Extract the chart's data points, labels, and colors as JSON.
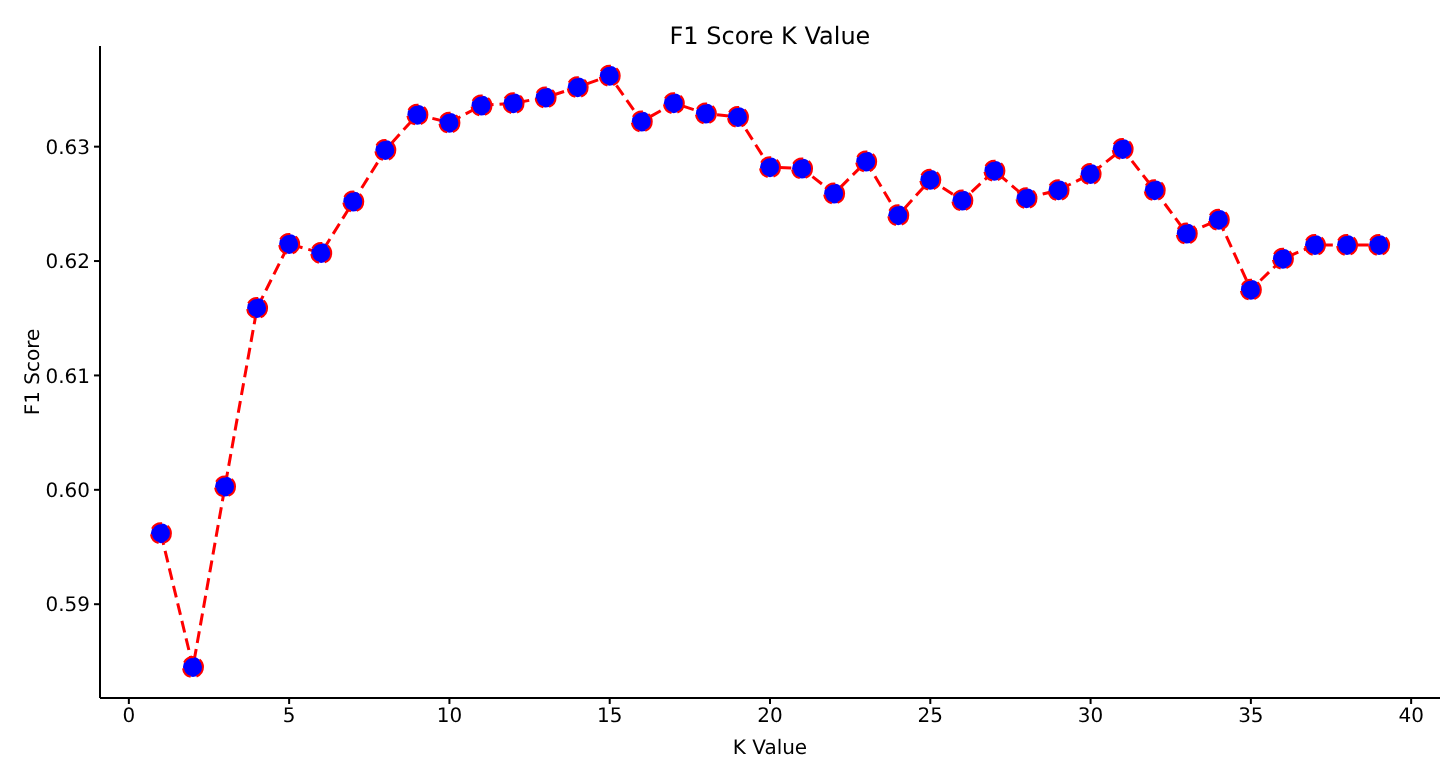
{
  "chart_data": {
    "type": "line",
    "title": "F1 Score K Value",
    "xlabel": "K Value",
    "ylabel": "F1 Score",
    "x": [
      1,
      2,
      3,
      4,
      5,
      6,
      7,
      8,
      9,
      10,
      11,
      12,
      13,
      14,
      15,
      16,
      17,
      18,
      19,
      20,
      21,
      22,
      23,
      24,
      25,
      26,
      27,
      28,
      29,
      30,
      31,
      32,
      33,
      34,
      35,
      36,
      37,
      38,
      39
    ],
    "series": [
      {
        "color": "#ff0000",
        "values": [
          0.5962,
          0.5845,
          0.6003,
          0.6159,
          0.6215,
          0.6207,
          0.6252,
          0.6297,
          0.6328,
          0.6321,
          0.6336,
          0.6338,
          0.6343,
          0.6352,
          0.6362,
          0.6322,
          0.6338,
          0.6329,
          0.6326,
          0.6282,
          0.6281,
          0.6259,
          0.6287,
          0.624,
          0.6271,
          0.6253,
          0.6279,
          0.6255,
          0.6262,
          0.6276,
          0.6298,
          0.6262,
          0.6224,
          0.6236,
          0.6175,
          0.6202,
          0.6214,
          0.6214,
          0.6214
        ]
      }
    ],
    "xlim": [
      -0.9,
      40.9
    ],
    "xticks": [
      0,
      5,
      10,
      15,
      20,
      25,
      30,
      35,
      40
    ],
    "ylim": [
      0.5818,
      0.6388
    ],
    "yticks": [
      {
        "value": 0.59,
        "label": "0.59"
      },
      {
        "value": 0.6,
        "label": "0.60"
      },
      {
        "value": 0.61,
        "label": "0.61"
      },
      {
        "value": 0.62,
        "label": "0.62"
      },
      {
        "value": 0.63,
        "label": "0.63"
      }
    ],
    "grid": false,
    "marker": "circle",
    "line_style": "dashed"
  }
}
